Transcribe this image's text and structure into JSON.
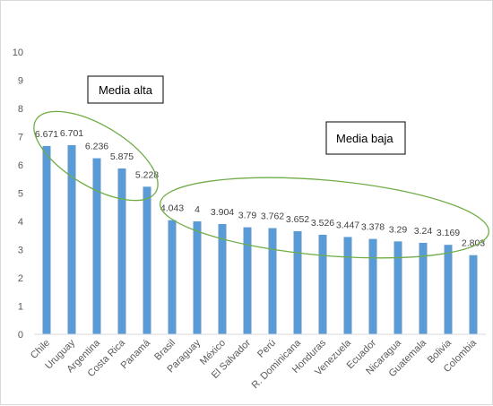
{
  "chart_data": {
    "type": "bar",
    "categories": [
      "Chile",
      "Uruguay",
      "Argentina",
      "Costa Rica",
      "Panamá",
      "Brasil",
      "Paraguay",
      "México",
      "El Salvador",
      "Perú",
      "R. Dominicana",
      "Honduras",
      "Venezuela",
      "Ecuador",
      "Nicaragua",
      "Guatemala",
      "Bolivia",
      "Colombia"
    ],
    "values": [
      6.671,
      6.701,
      6.236,
      5.875,
      5.228,
      4.043,
      4,
      3.904,
      3.79,
      3.762,
      3.652,
      3.526,
      3.447,
      3.378,
      3.29,
      3.24,
      3.169,
      2.803
    ],
    "value_labels": [
      "6.671",
      "6.701",
      "6.236",
      "5.875",
      "5.228",
      "4.043",
      "4",
      "3.904",
      "3.79",
      "3.762",
      "3.652",
      "3.526",
      "3.447",
      "3.378",
      "3.29",
      "3.24",
      "3.169",
      "2.803"
    ],
    "title": "",
    "xlabel": "",
    "ylabel": "",
    "ylim": [
      0,
      10
    ],
    "yticks": [
      "0",
      "1",
      "2",
      "3",
      "4",
      "5",
      "6",
      "7",
      "8",
      "9",
      "10"
    ],
    "grid": false,
    "legend": "none",
    "bar_color": "#5b9bd5",
    "annotations": [
      {
        "text": "Media alta",
        "group": [
          "Chile",
          "Uruguay",
          "Argentina",
          "Costa Rica",
          "Panamá"
        ],
        "ellipse_color": "#70ad47"
      },
      {
        "text": "Media baja",
        "group": [
          "Brasil",
          "Paraguay",
          "México",
          "El Salvador",
          "Perú",
          "R. Dominicana",
          "Honduras",
          "Venezuela",
          "Ecuador",
          "Nicaragua",
          "Guatemala",
          "Bolivia",
          "Colombia"
        ],
        "ellipse_color": "#70ad47"
      }
    ]
  }
}
